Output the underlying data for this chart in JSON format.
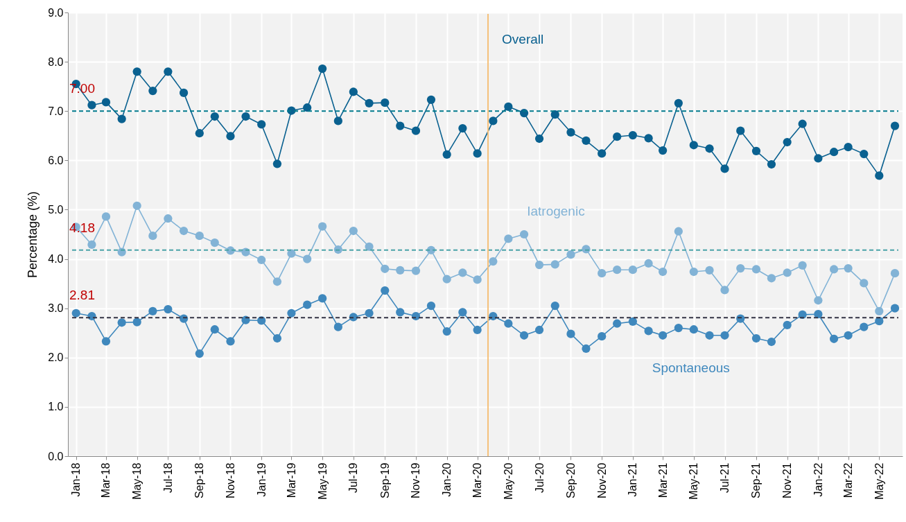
{
  "chart_data": {
    "type": "line",
    "ylabel": "Percentage (%)",
    "x": [
      "2018-01",
      "2018-02",
      "2018-03",
      "2018-04",
      "2018-05",
      "2018-06",
      "2018-07",
      "2018-08",
      "2018-09",
      "2018-10",
      "2018-11",
      "2018-12",
      "2019-01",
      "2019-02",
      "2019-03",
      "2019-04",
      "2019-05",
      "2019-06",
      "2019-07",
      "2019-08",
      "2019-09",
      "2019-10",
      "2019-11",
      "2019-12",
      "2020-01",
      "2020-02",
      "2020-03",
      "2020-04",
      "2020-05",
      "2020-06",
      "2020-07",
      "2020-08",
      "2020-09",
      "2020-10",
      "2020-11",
      "2020-12",
      "2021-01",
      "2021-02",
      "2021-03",
      "2021-04",
      "2021-05",
      "2021-06",
      "2021-07",
      "2021-08",
      "2021-09",
      "2021-10",
      "2021-11",
      "2021-12",
      "2022-01",
      "2022-02",
      "2022-03",
      "2022-04",
      "2022-05",
      "2022-06"
    ],
    "series": [
      {
        "name": "Overall",
        "color": "#0a6190",
        "values": [
          7.55,
          7.12,
          7.18,
          6.84,
          7.8,
          7.41,
          7.8,
          7.37,
          6.55,
          6.89,
          6.49,
          6.89,
          6.73,
          5.93,
          7.01,
          7.07,
          7.86,
          6.8,
          7.39,
          7.16,
          7.17,
          6.7,
          6.6,
          7.23,
          6.12,
          6.65,
          6.14,
          6.8,
          7.09,
          6.96,
          6.44,
          6.93,
          6.57,
          6.4,
          6.14,
          6.48,
          6.51,
          6.45,
          6.2,
          7.16,
          6.31,
          6.24,
          5.83,
          6.6,
          6.19,
          5.92,
          6.37,
          6.74,
          6.04,
          6.17,
          6.27,
          6.13,
          5.69,
          6.7
        ]
      },
      {
        "name": "Iatrogenic",
        "color": "#82b3d6",
        "values": [
          4.65,
          4.29,
          4.86,
          4.14,
          5.08,
          4.47,
          4.82,
          4.57,
          4.47,
          4.33,
          4.17,
          4.14,
          3.98,
          3.54,
          4.11,
          4.0,
          4.66,
          4.19,
          4.57,
          4.25,
          3.8,
          3.77,
          3.76,
          4.18,
          3.59,
          3.72,
          3.58,
          3.95,
          4.41,
          4.5,
          3.88,
          3.89,
          4.09,
          4.2,
          3.71,
          3.78,
          3.78,
          3.91,
          3.74,
          4.56,
          3.74,
          3.77,
          3.37,
          3.81,
          3.79,
          3.61,
          3.72,
          3.87,
          3.16,
          3.79,
          3.81,
          3.51,
          2.94,
          3.71
        ]
      },
      {
        "name": "Spontaneous",
        "color": "#3f88bd",
        "values": [
          2.9,
          2.84,
          2.33,
          2.71,
          2.72,
          2.94,
          2.98,
          2.79,
          2.08,
          2.57,
          2.33,
          2.76,
          2.75,
          2.39,
          2.9,
          3.07,
          3.2,
          2.62,
          2.82,
          2.9,
          3.36,
          2.92,
          2.84,
          3.05,
          2.53,
          2.92,
          2.56,
          2.84,
          2.69,
          2.45,
          2.56,
          3.05,
          2.48,
          2.18,
          2.43,
          2.69,
          2.73,
          2.54,
          2.45,
          2.6,
          2.57,
          2.45,
          2.45,
          2.79,
          2.39,
          2.32,
          2.66,
          2.87,
          2.88,
          2.38,
          2.45,
          2.62,
          2.74,
          3.0
        ]
      }
    ],
    "xlim": [
      "2017-12-16",
      "2022-06-16"
    ],
    "xticks": [
      {
        "value": "2018-01",
        "label": "Jan-18"
      },
      {
        "value": "2018-03",
        "label": "Mar-18"
      },
      {
        "value": "2018-05",
        "label": "May-18"
      },
      {
        "value": "2018-07",
        "label": "Jul-18"
      },
      {
        "value": "2018-09",
        "label": "Sep-18"
      },
      {
        "value": "2018-11",
        "label": "Nov-18"
      },
      {
        "value": "2019-01",
        "label": "Jan-19"
      },
      {
        "value": "2019-03",
        "label": "Mar-19"
      },
      {
        "value": "2019-05",
        "label": "May-19"
      },
      {
        "value": "2019-07",
        "label": "Jul-19"
      },
      {
        "value": "2019-09",
        "label": "Sep-19"
      },
      {
        "value": "2019-11",
        "label": "Nov-19"
      },
      {
        "value": "2020-01",
        "label": "Jan-20"
      },
      {
        "value": "2020-03",
        "label": "Mar-20"
      },
      {
        "value": "2020-05",
        "label": "May-20"
      },
      {
        "value": "2020-07",
        "label": "Jul-20"
      },
      {
        "value": "2020-09",
        "label": "Sep-20"
      },
      {
        "value": "2020-11",
        "label": "Nov-20"
      },
      {
        "value": "2021-01",
        "label": "Jan-21"
      },
      {
        "value": "2021-03",
        "label": "Mar-21"
      },
      {
        "value": "2021-05",
        "label": "May-21"
      },
      {
        "value": "2021-07",
        "label": "Jul-21"
      },
      {
        "value": "2021-09",
        "label": "Sep-21"
      },
      {
        "value": "2021-11",
        "label": "Nov-21"
      },
      {
        "value": "2022-01",
        "label": "Jan-22"
      },
      {
        "value": "2022-03",
        "label": "Mar-22"
      },
      {
        "value": "2022-05",
        "label": "May-22"
      }
    ],
    "ylim": [
      0,
      9
    ],
    "yticks": [
      {
        "value": 0,
        "label": "0.0"
      },
      {
        "value": 1,
        "label": "1.0"
      },
      {
        "value": 2,
        "label": "2.0"
      },
      {
        "value": 3,
        "label": "3.0"
      },
      {
        "value": 4,
        "label": "4.0"
      },
      {
        "value": 5,
        "label": "5.0"
      },
      {
        "value": 6,
        "label": "6.0"
      },
      {
        "value": 7,
        "label": "7.0"
      },
      {
        "value": 8,
        "label": "8.0"
      },
      {
        "value": 9,
        "label": "9.0"
      }
    ],
    "ref_lines": [
      {
        "axis": "y",
        "value": 7.0,
        "label": "7.00",
        "color": "#00798c",
        "line_style": "dashed"
      },
      {
        "axis": "y",
        "value": 4.18,
        "label": "4.18",
        "color": "#4aa3a8",
        "line_style": "dashed"
      },
      {
        "axis": "y",
        "value": 2.81,
        "label": "2.81",
        "color": "#333344",
        "line_style": "dashed"
      },
      {
        "axis": "x",
        "value": "2020-03-22",
        "color": "#f5c07a",
        "line_style": "solid"
      }
    ],
    "grid": true,
    "marker": "circle",
    "line_style": "solid"
  }
}
